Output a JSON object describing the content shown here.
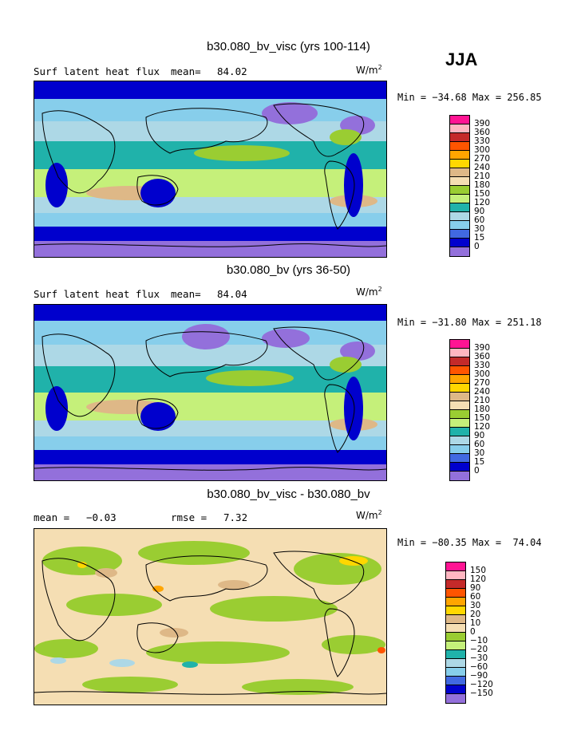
{
  "season": "JJA",
  "panels": [
    {
      "title": "b30.080_bv_visc (yrs 100-114)",
      "variable": "Surf latent heat flux",
      "stat1_label": "mean=",
      "stat1_value": "84.02",
      "stat2_label": "",
      "stat2_value": "",
      "units": "W/m",
      "units_exp": "2",
      "minmax": "Min = −34.68 Max = 256.85",
      "colorbar": {
        "labels": [
          "390",
          "360",
          "330",
          "300",
          "270",
          "240",
          "210",
          "180",
          "150",
          "120",
          "90",
          "60",
          "30",
          "15",
          "0"
        ],
        "colors": [
          "#ff1493",
          "#ffb6c1",
          "#c42a2a",
          "#ff5500",
          "#ffa500",
          "#ffd700",
          "#deb887",
          "#f5deb3",
          "#9acd32",
          "#c5f07a",
          "#20b2aa",
          "#add8e6",
          "#87ceeb",
          "#4169e1",
          "#0000cd",
          "#9370db"
        ]
      }
    },
    {
      "title": "b30.080_bv (yrs 36-50)",
      "variable": "Surf latent heat flux",
      "stat1_label": "mean=",
      "stat1_value": "84.04",
      "stat2_label": "",
      "stat2_value": "",
      "units": "W/m",
      "units_exp": "2",
      "minmax": "Min = −31.80 Max = 251.18",
      "colorbar": {
        "labels": [
          "390",
          "360",
          "330",
          "300",
          "270",
          "240",
          "210",
          "180",
          "150",
          "120",
          "90",
          "60",
          "30",
          "15",
          "0"
        ],
        "colors": [
          "#ff1493",
          "#ffb6c1",
          "#c42a2a",
          "#ff5500",
          "#ffa500",
          "#ffd700",
          "#deb887",
          "#f5deb3",
          "#9acd32",
          "#c5f07a",
          "#20b2aa",
          "#add8e6",
          "#87ceeb",
          "#4169e1",
          "#0000cd",
          "#9370db"
        ]
      }
    },
    {
      "title": "b30.080_bv_visc - b30.080_bv",
      "variable": "",
      "stat1_label": "mean =",
      "stat1_value": "−0.03",
      "stat2_label": "rmse =",
      "stat2_value": "7.32",
      "units": "W/m",
      "units_exp": "2",
      "minmax": "Min = −80.35 Max =  74.04",
      "colorbar": {
        "labels": [
          "150",
          "120",
          "90",
          "60",
          "30",
          "20",
          "10",
          "0",
          "−10",
          "−20",
          "−30",
          "−60",
          "−90",
          "−120",
          "−150"
        ],
        "colors": [
          "#ff1493",
          "#ffb6c1",
          "#c42a2a",
          "#ff5500",
          "#ffa500",
          "#ffd700",
          "#deb887",
          "#f5deb3",
          "#9acd32",
          "#c5f07a",
          "#20b2aa",
          "#add8e6",
          "#87ceeb",
          "#4169e1",
          "#0000cd",
          "#9370db"
        ]
      }
    }
  ]
}
